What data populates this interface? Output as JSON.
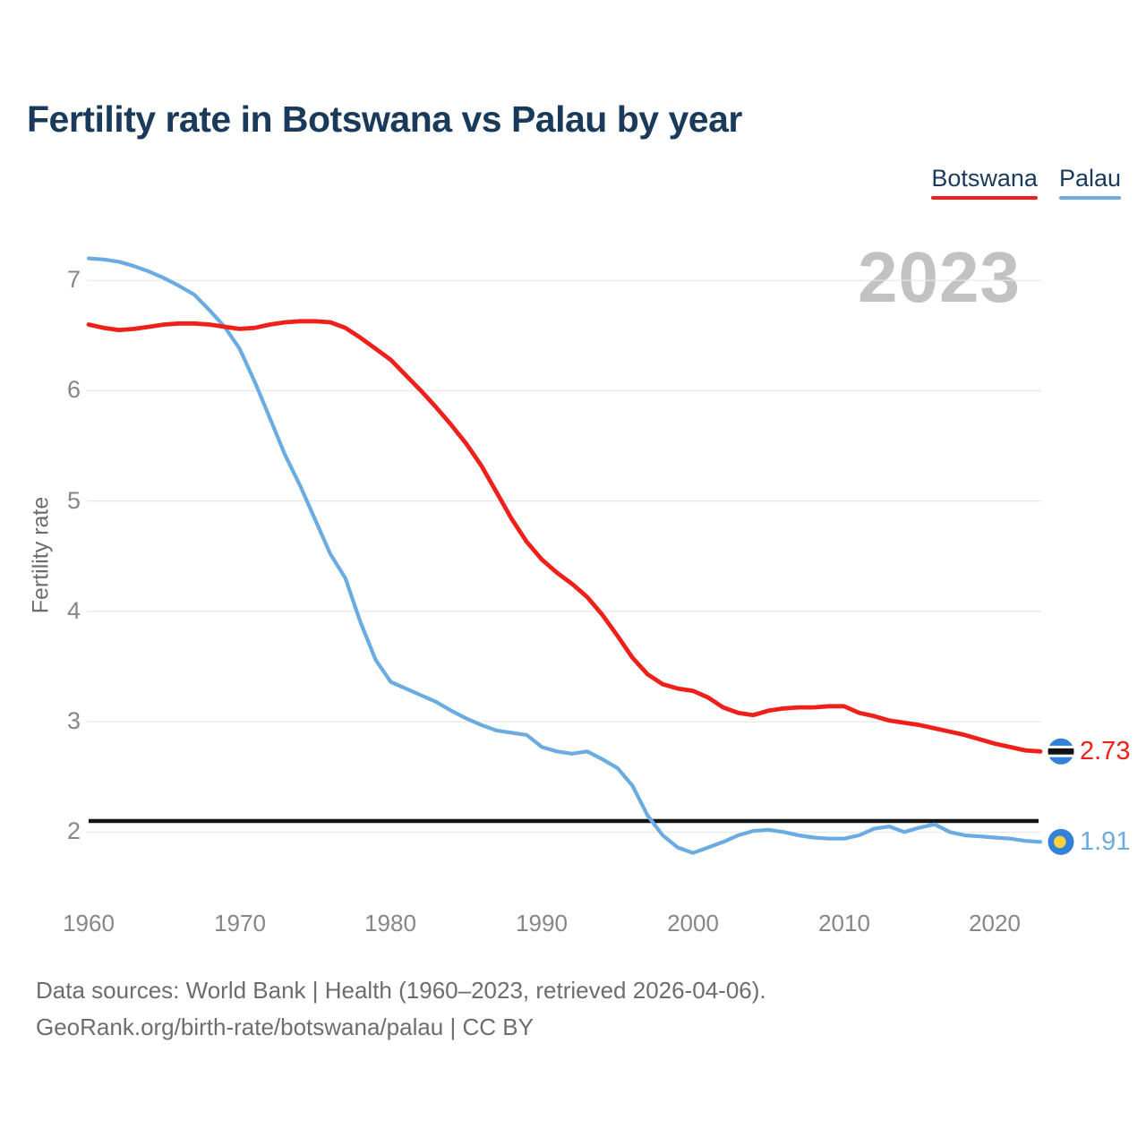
{
  "title": "Fertility rate in Botswana vs Palau by year",
  "legend": {
    "items": [
      {
        "label": "Botswana",
        "color": "#ee2019"
      },
      {
        "label": "Palau",
        "color": "#6aabe2"
      }
    ]
  },
  "watermark": "2023",
  "end_labels": {
    "botswana": "2.73",
    "palau": "1.91"
  },
  "reference_line": {
    "value": 2.1,
    "color": "#141414"
  },
  "colors": {
    "botswana_line": "#ee2019",
    "palau_line": "#6aabe2",
    "grid": "#e7e7e7",
    "flag_circle_blue": "#3182d8",
    "flag_yellow": "#fdd23e",
    "flag_black": "#111111",
    "flag_white": "#ffffff",
    "title_text": "#1a3a5c",
    "axis_text": "#868686",
    "footer_text": "#6d6d6d",
    "watermark_text": "#c2c2c2"
  },
  "footer": {
    "line1": "Data sources: World Bank | Health (1960–2023, retrieved 2026-04-06).",
    "line2": "GeoRank.org/birth-rate/botswana/palau | CC BY"
  },
  "chart_data": {
    "type": "line",
    "title": "Fertility rate in Botswana vs Palau by year",
    "xlabel": "",
    "ylabel": "Fertility rate",
    "x_ticks": [
      1960,
      1970,
      1980,
      1990,
      2000,
      2010,
      2020
    ],
    "y_ticks": [
      2,
      3,
      4,
      5,
      6,
      7
    ],
    "ylim": [
      1.7,
      7.3
    ],
    "grid": "horizontal",
    "legend_position": "top-right",
    "reference_line_y": 2.1,
    "x": [
      1960,
      1961,
      1962,
      1963,
      1964,
      1965,
      1966,
      1967,
      1968,
      1969,
      1970,
      1971,
      1972,
      1973,
      1974,
      1975,
      1976,
      1977,
      1978,
      1979,
      1980,
      1981,
      1982,
      1983,
      1984,
      1985,
      1986,
      1987,
      1988,
      1989,
      1990,
      1991,
      1992,
      1993,
      1994,
      1995,
      1996,
      1997,
      1998,
      1999,
      2000,
      2001,
      2002,
      2003,
      2004,
      2005,
      2006,
      2007,
      2008,
      2009,
      2010,
      2011,
      2012,
      2013,
      2014,
      2015,
      2016,
      2017,
      2018,
      2019,
      2020,
      2021,
      2022,
      2023
    ],
    "series": [
      {
        "name": "Botswana",
        "color": "#ee2019",
        "end_value": 2.73,
        "values": [
          6.6,
          6.57,
          6.55,
          6.56,
          6.58,
          6.6,
          6.61,
          6.61,
          6.6,
          6.58,
          6.56,
          6.57,
          6.6,
          6.62,
          6.63,
          6.63,
          6.62,
          6.57,
          6.48,
          6.38,
          6.28,
          6.14,
          6.0,
          5.85,
          5.69,
          5.52,
          5.32,
          5.08,
          4.84,
          4.63,
          4.47,
          4.35,
          4.25,
          4.13,
          3.97,
          3.78,
          3.58,
          3.43,
          3.34,
          3.3,
          3.28,
          3.22,
          3.13,
          3.08,
          3.06,
          3.1,
          3.12,
          3.13,
          3.13,
          3.14,
          3.14,
          3.08,
          3.05,
          3.01,
          2.99,
          2.97,
          2.94,
          2.91,
          2.88,
          2.84,
          2.8,
          2.77,
          2.74,
          2.73
        ]
      },
      {
        "name": "Palau",
        "color": "#6aabe2",
        "end_value": 1.91,
        "values": [
          7.2,
          7.19,
          7.17,
          7.13,
          7.08,
          7.02,
          6.95,
          6.87,
          6.73,
          6.58,
          6.38,
          6.08,
          5.75,
          5.42,
          5.14,
          4.83,
          4.52,
          4.3,
          3.9,
          3.56,
          3.36,
          3.3,
          3.24,
          3.18,
          3.1,
          3.03,
          2.97,
          2.92,
          2.9,
          2.88,
          2.77,
          2.73,
          2.71,
          2.73,
          2.66,
          2.58,
          2.42,
          2.15,
          1.97,
          1.86,
          1.81,
          1.86,
          1.91,
          1.97,
          2.01,
          2.02,
          2.0,
          1.97,
          1.95,
          1.94,
          1.94,
          1.97,
          2.03,
          2.05,
          2.0,
          2.04,
          2.07,
          2.0,
          1.97,
          1.96,
          1.95,
          1.94,
          1.92,
          1.91
        ]
      }
    ]
  }
}
